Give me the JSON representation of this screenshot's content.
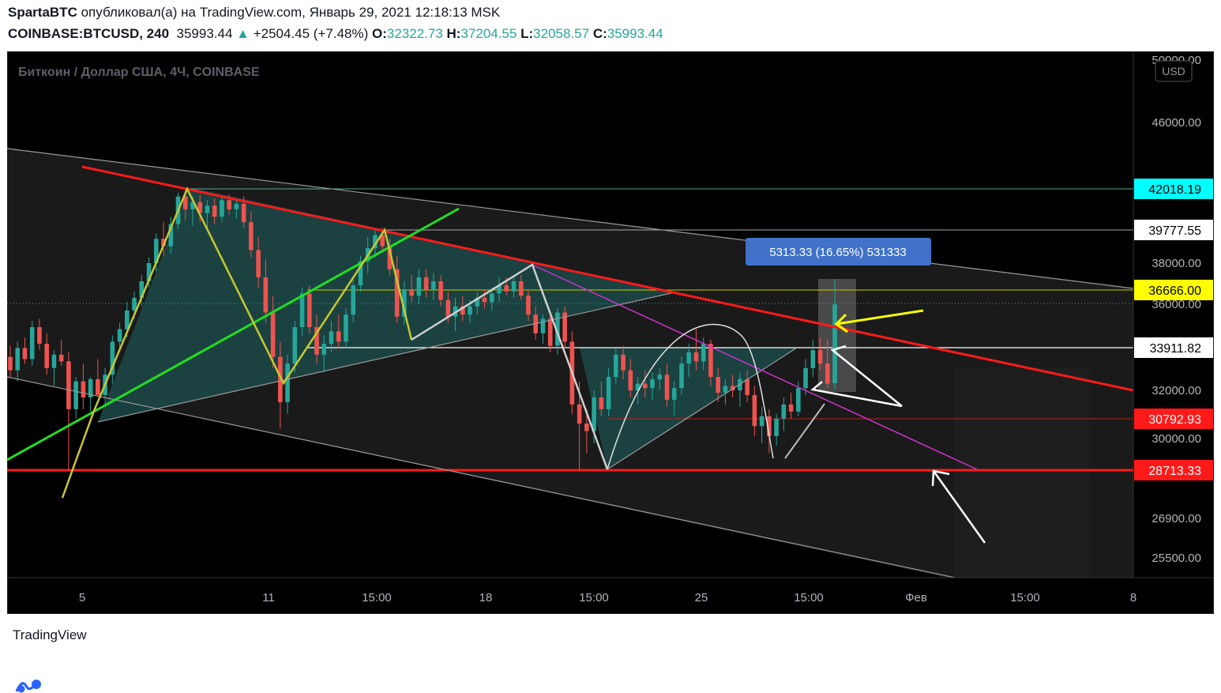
{
  "header": {
    "author": "SpartaBTC",
    "published_text": "опубликовал(а) на TradingView.com, Январь 29, 2021 12:18:13 MSK",
    "symbol": "COINBASE:BTCUSD, 240",
    "last": "35993.44",
    "change": "+2504.45 (+7.48%)",
    "o_label": "O:",
    "o_value": "32322.73",
    "h_label": "H:",
    "h_value": "37204.55",
    "l_label": "L:",
    "l_value": "32058.57",
    "c_label": "C:",
    "c_value": "35993.44"
  },
  "footer": {
    "brand": "TradingView",
    "logo_icon": "tradingview-logo-icon"
  },
  "colors": {
    "up": "#26a69a",
    "down": "#ef5350",
    "trend_red": "#ff0000",
    "green_line": "#22dd22",
    "yellow": "#ffff00",
    "cyan": "#00ffff",
    "magenta": "#cc33cc",
    "measure_box": "#3f72c8"
  },
  "chart_data": {
    "type": "candlestick",
    "title": "Биткоин / Доллар США, 4Ч, COINBASE",
    "currency_badge": "USD",
    "y_ticks": [
      "50000.00",
      "46000.00",
      "38000.00",
      "36000.00",
      "32000.00",
      "30000.00",
      "26900.00",
      "25500.00"
    ],
    "x_ticks": [
      "5",
      "11",
      "15:00",
      "18",
      "15:00",
      "25",
      "15:00",
      "Фев",
      "15:00",
      "8"
    ],
    "price_labels": [
      {
        "value": "42018.19",
        "color": "cyan"
      },
      {
        "value": "39777.55",
        "color": "white"
      },
      {
        "value": "36666.00",
        "color": "yellow"
      },
      {
        "value": "33911.82",
        "color": "white"
      },
      {
        "value": "30792.93",
        "color": "red"
      },
      {
        "value": "28713.33",
        "color": "red"
      }
    ],
    "measure_label": "5313.33 (16.65%) 531333",
    "candles": [
      {
        "o": 33500,
        "h": 34000,
        "l": 32600,
        "c": 32900
      },
      {
        "o": 32900,
        "h": 34200,
        "l": 32400,
        "c": 33900
      },
      {
        "o": 33900,
        "h": 34400,
        "l": 33200,
        "c": 33400
      },
      {
        "o": 33400,
        "h": 35200,
        "l": 33100,
        "c": 34900
      },
      {
        "o": 34900,
        "h": 35300,
        "l": 33800,
        "c": 34100
      },
      {
        "o": 34100,
        "h": 34600,
        "l": 32700,
        "c": 33000
      },
      {
        "o": 33000,
        "h": 33800,
        "l": 32200,
        "c": 33600
      },
      {
        "o": 33600,
        "h": 34300,
        "l": 33100,
        "c": 33300
      },
      {
        "o": 33300,
        "h": 33700,
        "l": 28713,
        "c": 31200
      },
      {
        "o": 31200,
        "h": 32600,
        "l": 30800,
        "c": 32400
      },
      {
        "o": 32400,
        "h": 33200,
        "l": 31200,
        "c": 31700
      },
      {
        "o": 31700,
        "h": 32600,
        "l": 31100,
        "c": 32500
      },
      {
        "o": 32500,
        "h": 33400,
        "l": 31900,
        "c": 31800
      },
      {
        "o": 31800,
        "h": 33000,
        "l": 31400,
        "c": 32700
      },
      {
        "o": 32700,
        "h": 34500,
        "l": 32300,
        "c": 34200
      },
      {
        "o": 34200,
        "h": 35100,
        "l": 33900,
        "c": 34800
      },
      {
        "o": 34800,
        "h": 36100,
        "l": 34400,
        "c": 35700
      },
      {
        "o": 35700,
        "h": 36600,
        "l": 35300,
        "c": 36300
      },
      {
        "o": 36300,
        "h": 37400,
        "l": 35900,
        "c": 37100
      },
      {
        "o": 37100,
        "h": 38300,
        "l": 36800,
        "c": 38000
      },
      {
        "o": 38000,
        "h": 39600,
        "l": 37600,
        "c": 39300
      },
      {
        "o": 39300,
        "h": 40200,
        "l": 38400,
        "c": 38900
      },
      {
        "o": 38900,
        "h": 40500,
        "l": 38500,
        "c": 40100
      },
      {
        "o": 40100,
        "h": 41800,
        "l": 39800,
        "c": 41600
      },
      {
        "o": 41600,
        "h": 42018,
        "l": 40300,
        "c": 40900
      },
      {
        "o": 40900,
        "h": 41600,
        "l": 40000,
        "c": 41300
      },
      {
        "o": 41300,
        "h": 41700,
        "l": 40200,
        "c": 40700
      },
      {
        "o": 40700,
        "h": 41400,
        "l": 39900,
        "c": 41100
      },
      {
        "o": 41100,
        "h": 41500,
        "l": 40100,
        "c": 40500
      },
      {
        "o": 40500,
        "h": 41600,
        "l": 40200,
        "c": 41400
      },
      {
        "o": 41400,
        "h": 41700,
        "l": 40600,
        "c": 40900
      },
      {
        "o": 40900,
        "h": 41500,
        "l": 40400,
        "c": 41200
      },
      {
        "o": 41200,
        "h": 41600,
        "l": 39900,
        "c": 40200
      },
      {
        "o": 40200,
        "h": 40800,
        "l": 38300,
        "c": 38700
      },
      {
        "o": 38700,
        "h": 39400,
        "l": 36800,
        "c": 37300
      },
      {
        "o": 37300,
        "h": 38200,
        "l": 35100,
        "c": 35600
      },
      {
        "o": 35600,
        "h": 36400,
        "l": 33000,
        "c": 33500
      },
      {
        "o": 33500,
        "h": 34200,
        "l": 30400,
        "c": 31500
      },
      {
        "o": 31500,
        "h": 33600,
        "l": 31000,
        "c": 33200
      },
      {
        "o": 33200,
        "h": 35200,
        "l": 32800,
        "c": 34900
      },
      {
        "o": 34900,
        "h": 36800,
        "l": 34500,
        "c": 36500
      },
      {
        "o": 36500,
        "h": 36900,
        "l": 34600,
        "c": 34900
      },
      {
        "o": 34900,
        "h": 35500,
        "l": 33200,
        "c": 33600
      },
      {
        "o": 33600,
        "h": 34500,
        "l": 32800,
        "c": 34100
      },
      {
        "o": 34100,
        "h": 35200,
        "l": 33700,
        "c": 34700
      },
      {
        "o": 34700,
        "h": 35500,
        "l": 33900,
        "c": 34200
      },
      {
        "o": 34200,
        "h": 35800,
        "l": 33900,
        "c": 35500
      },
      {
        "o": 35500,
        "h": 37200,
        "l": 35100,
        "c": 36900
      },
      {
        "o": 36900,
        "h": 38400,
        "l": 36600,
        "c": 38100
      },
      {
        "o": 38100,
        "h": 39400,
        "l": 37500,
        "c": 38800
      },
      {
        "o": 38800,
        "h": 39800,
        "l": 38300,
        "c": 39500
      },
      {
        "o": 39500,
        "h": 39900,
        "l": 38600,
        "c": 38900
      },
      {
        "o": 38900,
        "h": 39300,
        "l": 37400,
        "c": 37700
      },
      {
        "o": 37700,
        "h": 38400,
        "l": 35100,
        "c": 35400
      },
      {
        "o": 35400,
        "h": 37100,
        "l": 35000,
        "c": 36700
      },
      {
        "o": 36700,
        "h": 37400,
        "l": 36100,
        "c": 36400
      },
      {
        "o": 36400,
        "h": 37700,
        "l": 36000,
        "c": 37300
      },
      {
        "o": 37300,
        "h": 37700,
        "l": 36300,
        "c": 36700
      },
      {
        "o": 36700,
        "h": 37500,
        "l": 36200,
        "c": 37100
      },
      {
        "o": 37100,
        "h": 37400,
        "l": 35900,
        "c": 36200
      },
      {
        "o": 36200,
        "h": 36600,
        "l": 35100,
        "c": 35400
      },
      {
        "o": 35400,
        "h": 36300,
        "l": 34700,
        "c": 35900
      },
      {
        "o": 35900,
        "h": 36400,
        "l": 35200,
        "c": 35500
      },
      {
        "o": 35500,
        "h": 36200,
        "l": 35100,
        "c": 35900
      },
      {
        "o": 35900,
        "h": 36600,
        "l": 35500,
        "c": 36300
      },
      {
        "o": 36300,
        "h": 36700,
        "l": 35800,
        "c": 36100
      },
      {
        "o": 36100,
        "h": 36800,
        "l": 35700,
        "c": 36500
      },
      {
        "o": 36500,
        "h": 37300,
        "l": 36100,
        "c": 36900
      },
      {
        "o": 36900,
        "h": 37300,
        "l": 36400,
        "c": 36600
      },
      {
        "o": 36600,
        "h": 37400,
        "l": 36300,
        "c": 37100
      },
      {
        "o": 37100,
        "h": 37400,
        "l": 36200,
        "c": 36400
      },
      {
        "o": 36400,
        "h": 36700,
        "l": 35200,
        "c": 35500
      },
      {
        "o": 35500,
        "h": 35900,
        "l": 34300,
        "c": 34600
      },
      {
        "o": 34600,
        "h": 35500,
        "l": 34100,
        "c": 35300
      },
      {
        "o": 35300,
        "h": 35700,
        "l": 33700,
        "c": 34000
      },
      {
        "o": 34000,
        "h": 35800,
        "l": 33600,
        "c": 35600
      },
      {
        "o": 35600,
        "h": 35900,
        "l": 33900,
        "c": 34200
      },
      {
        "o": 34200,
        "h": 34700,
        "l": 31000,
        "c": 31400
      },
      {
        "o": 31400,
        "h": 32400,
        "l": 28713,
        "c": 30600
      },
      {
        "o": 30600,
        "h": 31200,
        "l": 29400,
        "c": 30300
      },
      {
        "o": 30300,
        "h": 32000,
        "l": 29800,
        "c": 31700
      },
      {
        "o": 31700,
        "h": 32400,
        "l": 30900,
        "c": 31200
      },
      {
        "o": 31200,
        "h": 33000,
        "l": 30900,
        "c": 32600
      },
      {
        "o": 32600,
        "h": 33900,
        "l": 32300,
        "c": 33600
      },
      {
        "o": 33600,
        "h": 34000,
        "l": 32500,
        "c": 32900
      },
      {
        "o": 32900,
        "h": 33400,
        "l": 31700,
        "c": 32000
      },
      {
        "o": 32000,
        "h": 32600,
        "l": 31400,
        "c": 32300
      },
      {
        "o": 32300,
        "h": 32900,
        "l": 31700,
        "c": 32100
      },
      {
        "o": 32100,
        "h": 32800,
        "l": 31600,
        "c": 32500
      },
      {
        "o": 32500,
        "h": 33000,
        "l": 32000,
        "c": 32700
      },
      {
        "o": 32700,
        "h": 33200,
        "l": 31300,
        "c": 31600
      },
      {
        "o": 31600,
        "h": 32400,
        "l": 30900,
        "c": 32100
      },
      {
        "o": 32100,
        "h": 33500,
        "l": 31800,
        "c": 33200
      },
      {
        "o": 33200,
        "h": 34100,
        "l": 32600,
        "c": 33700
      },
      {
        "o": 33700,
        "h": 34800,
        "l": 32900,
        "c": 33300
      },
      {
        "o": 33300,
        "h": 34400,
        "l": 32900,
        "c": 34100
      },
      {
        "o": 34100,
        "h": 34300,
        "l": 32200,
        "c": 32600
      },
      {
        "o": 32600,
        "h": 33000,
        "l": 31500,
        "c": 31900
      },
      {
        "o": 31900,
        "h": 32500,
        "l": 31400,
        "c": 32200
      },
      {
        "o": 32200,
        "h": 32700,
        "l": 31700,
        "c": 32000
      },
      {
        "o": 32000,
        "h": 32800,
        "l": 31300,
        "c": 32500
      },
      {
        "o": 32500,
        "h": 32900,
        "l": 31500,
        "c": 31800
      },
      {
        "o": 31800,
        "h": 32200,
        "l": 30100,
        "c": 30500
      },
      {
        "o": 30500,
        "h": 31300,
        "l": 29800,
        "c": 30900
      },
      {
        "o": 30900,
        "h": 31200,
        "l": 29400,
        "c": 30100
      },
      {
        "o": 30100,
        "h": 31000,
        "l": 29700,
        "c": 30800
      },
      {
        "o": 30800,
        "h": 31700,
        "l": 30300,
        "c": 31400
      },
      {
        "o": 31400,
        "h": 31900,
        "l": 30800,
        "c": 31100
      },
      {
        "o": 31100,
        "h": 32400,
        "l": 30900,
        "c": 32100
      },
      {
        "o": 32100,
        "h": 33400,
        "l": 31800,
        "c": 33000
      },
      {
        "o": 33000,
        "h": 34300,
        "l": 32600,
        "c": 33800
      },
      {
        "o": 33800,
        "h": 34400,
        "l": 32900,
        "c": 33200
      },
      {
        "o": 33200,
        "h": 34300,
        "l": 32100,
        "c": 32300
      },
      {
        "o": 32322,
        "h": 37204,
        "l": 32058,
        "c": 35993
      }
    ]
  }
}
